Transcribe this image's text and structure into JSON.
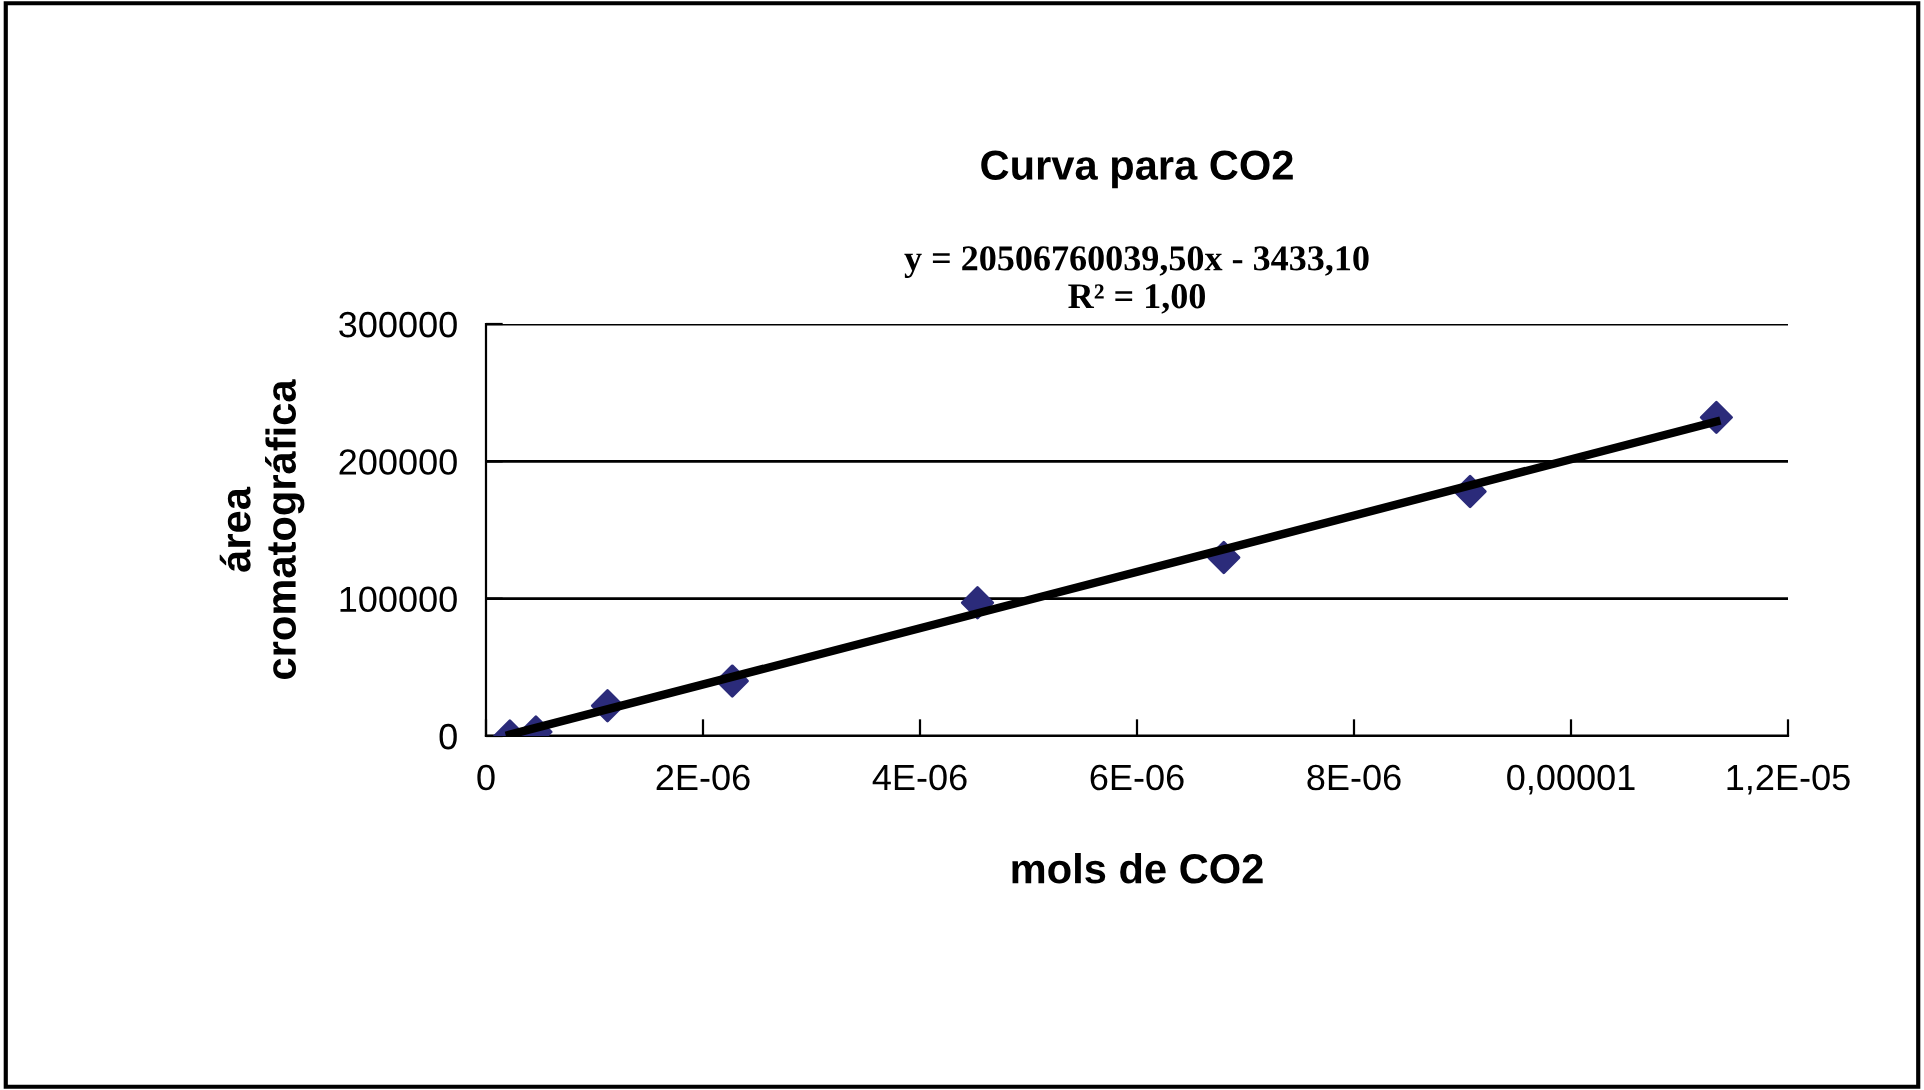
{
  "chart_data": {
    "type": "scatter",
    "title": "Curva para CO2",
    "xlabel": "mols de CO2",
    "ylabel": "área\ncromatográfica",
    "x": [
      2.2e-07,
      4.6e-07,
      1.12e-06,
      2.27e-06,
      4.53e-06,
      6.8e-06,
      9.07e-06,
      1.134e-05
    ],
    "series": [
      {
        "color": "#2b2b7a",
        "marker": "diamond",
        "values": [
          0,
          3000,
          22000,
          40000,
          97000,
          130000,
          178000,
          232000
        ]
      },
      {
        "type": "line",
        "color": "#000000",
        "marker": "none",
        "line_style": "solid",
        "x": [
          2.2e-07,
          1.134e-05
        ],
        "values": [
          1000,
          229000
        ]
      }
    ],
    "annotations": [
      "y = 20506760039,50x - 3433,10\nR² = 1,00"
    ],
    "xlim": [
      0,
      1.2e-05
    ],
    "ylim": [
      0,
      300000
    ],
    "xticks": [
      0,
      {
        "value": 2e-06,
        "label": "2E-06"
      },
      {
        "value": 4e-06,
        "label": "4E-06"
      },
      {
        "value": 6e-06,
        "label": "6E-06"
      },
      {
        "value": 8e-06,
        "label": "8E-06"
      },
      {
        "value": 1e-05,
        "label": "0,00001"
      },
      {
        "value": 1.2e-05,
        "label": "1,2E-05"
      }
    ],
    "yticks": [
      0,
      100000,
      200000,
      300000
    ],
    "grid": "y",
    "legend": false
  }
}
